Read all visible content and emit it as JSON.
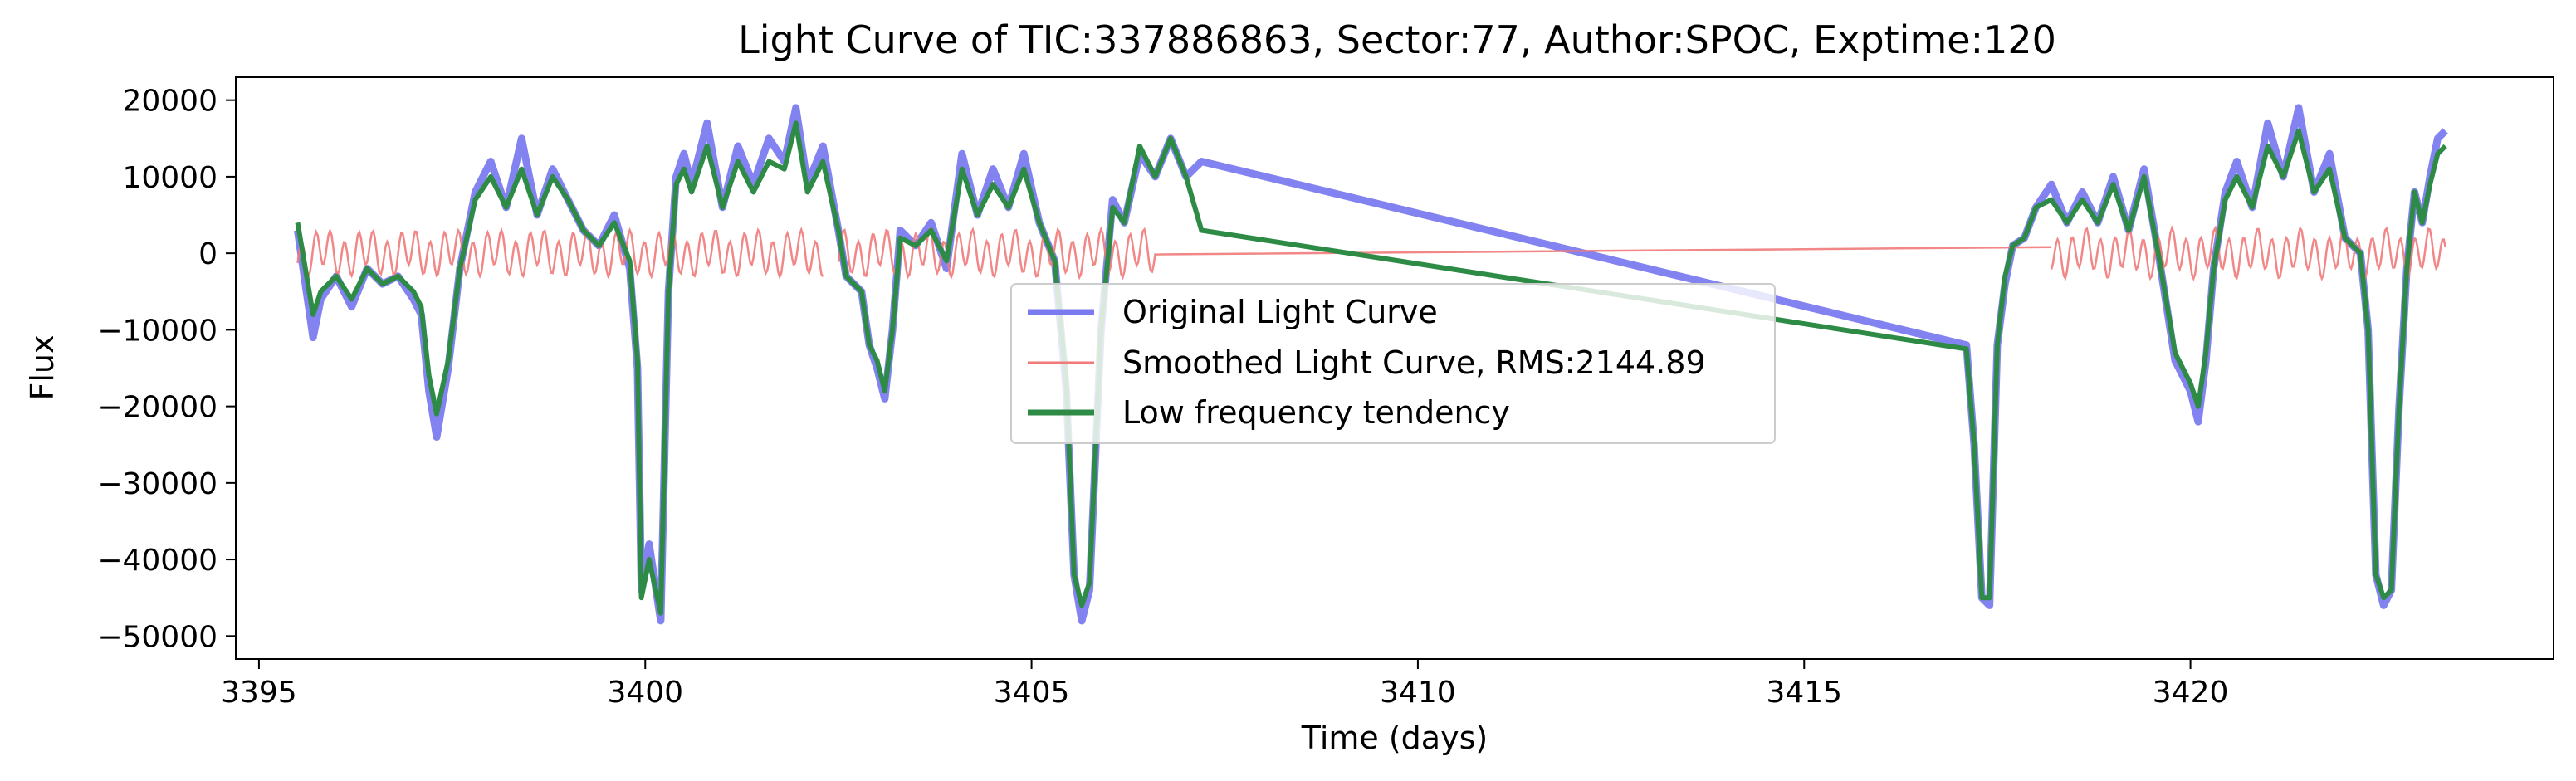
{
  "chart_data": {
    "type": "line",
    "title": "Light Curve of TIC:337886863, Sector:77, Author:SPOC, Exptime:120",
    "xlabel": "Time (days)",
    "ylabel": "Flux",
    "xlim": [
      3394.7,
      3424.7
    ],
    "ylim": [
      -53000,
      23000
    ],
    "xticks": [
      3395,
      3400,
      3405,
      3410,
      3415,
      3420
    ],
    "xtick_labels": [
      "3395",
      "3400",
      "3405",
      "3410",
      "3415",
      "3420"
    ],
    "yticks": [
      20000,
      10000,
      0,
      -10000,
      -20000,
      -30000,
      -40000,
      -50000
    ],
    "ytick_labels": [
      "20000",
      "10000",
      "0",
      "−10000",
      "−20000",
      "−30000",
      "−40000",
      "−50000"
    ],
    "grid": false,
    "legend_position": "center",
    "series": [
      {
        "name": "Original Light Curve",
        "color": "#7b7bf0",
        "x": [
          3395.5,
          3395.7,
          3395.8,
          3396.0,
          3396.2,
          3396.4,
          3396.6,
          3396.8,
          3397.0,
          3397.1,
          3397.2,
          3397.3,
          3397.45,
          3397.6,
          3397.8,
          3398.0,
          3398.2,
          3398.4,
          3398.6,
          3398.8,
          3399.0,
          3399.2,
          3399.4,
          3399.6,
          3399.8,
          3399.9,
          3399.95,
          3400.05,
          3400.2,
          3400.3,
          3400.4,
          3400.5,
          3400.6,
          3400.8,
          3401.0,
          3401.2,
          3401.4,
          3401.6,
          3401.8,
          3401.95,
          3402.1,
          3402.3,
          3402.5,
          3402.6,
          3402.8,
          3402.9,
          3403.0,
          3403.1,
          3403.2,
          3403.3,
          3403.5,
          3403.7,
          3403.9,
          3404.1,
          3404.3,
          3404.5,
          3404.7,
          3404.9,
          3405.1,
          3405.3,
          3405.45,
          3405.55,
          3405.65,
          3405.75,
          3405.9,
          3406.05,
          3406.2,
          3406.4,
          3406.6,
          3406.8,
          3407.0,
          3407.2,
          3417.1,
          3417.2,
          3417.3,
          3417.4,
          3417.5,
          3417.6,
          3417.7,
          3417.85,
          3418.0,
          3418.2,
          3418.4,
          3418.6,
          3418.8,
          3419.0,
          3419.2,
          3419.4,
          3419.6,
          3419.8,
          3420.0,
          3420.1,
          3420.2,
          3420.3,
          3420.45,
          3420.6,
          3420.8,
          3421.0,
          3421.2,
          3421.4,
          3421.6,
          3421.8,
          3422.0,
          3422.2,
          3422.3,
          3422.4,
          3422.5,
          3422.6,
          3422.7,
          3422.8,
          3422.9,
          3423.0,
          3423.1,
          3423.2,
          3423.3
        ],
        "y": [
          3000,
          -11000,
          -6000,
          -3000,
          -7000,
          -2000,
          -4000,
          -3000,
          -6000,
          -8000,
          -18000,
          -24000,
          -15000,
          -2000,
          8000,
          12000,
          6000,
          15000,
          5000,
          11000,
          7000,
          3000,
          1000,
          5000,
          -2000,
          -15000,
          -44000,
          -38000,
          -48000,
          -5000,
          10000,
          13000,
          9000,
          17000,
          6000,
          14000,
          9000,
          15000,
          12000,
          19000,
          9000,
          14000,
          3000,
          -3000,
          -5000,
          -12000,
          -15000,
          -19000,
          -10000,
          3000,
          1000,
          4000,
          -2000,
          13000,
          5000,
          11000,
          6000,
          13000,
          4000,
          -1000,
          -18000,
          -42000,
          -48000,
          -44000,
          -10000,
          7000,
          4000,
          13000,
          10000,
          15000,
          10000,
          12000,
          -12000,
          -25000,
          -45000,
          -46000,
          -12000,
          -4000,
          1000,
          2000,
          6000,
          9000,
          4000,
          8000,
          4000,
          10000,
          3000,
          11000,
          -1000,
          -14000,
          -18000,
          -22000,
          -14000,
          -2000,
          8000,
          12000,
          6000,
          17000,
          10000,
          19000,
          8000,
          13000,
          2000,
          0,
          -10000,
          -42000,
          -46000,
          -44000,
          -20000,
          -2000,
          8000,
          4000,
          10000,
          15000,
          16000
        ]
      },
      {
        "name": "Smoothed Light Curve, RMS:2144.89",
        "color": "#f07a7a"
      },
      {
        "name": "Low frequency tendency",
        "color": "#2e8b46",
        "x": [
          3395.5,
          3395.7,
          3395.8,
          3396.0,
          3396.2,
          3396.4,
          3396.6,
          3396.8,
          3397.0,
          3397.1,
          3397.2,
          3397.3,
          3397.45,
          3397.6,
          3397.8,
          3398.0,
          3398.2,
          3398.4,
          3398.6,
          3398.8,
          3399.0,
          3399.2,
          3399.4,
          3399.6,
          3399.8,
          3399.9,
          3399.95,
          3400.05,
          3400.2,
          3400.3,
          3400.4,
          3400.5,
          3400.6,
          3400.8,
          3401.0,
          3401.2,
          3401.4,
          3401.6,
          3401.8,
          3401.95,
          3402.1,
          3402.3,
          3402.5,
          3402.6,
          3402.8,
          3402.9,
          3403.0,
          3403.1,
          3403.2,
          3403.3,
          3403.5,
          3403.7,
          3403.9,
          3404.1,
          3404.3,
          3404.5,
          3404.7,
          3404.9,
          3405.1,
          3405.3,
          3405.45,
          3405.55,
          3405.65,
          3405.75,
          3405.9,
          3406.05,
          3406.2,
          3406.4,
          3406.6,
          3406.8,
          3407.0,
          3407.2,
          3417.1,
          3417.2,
          3417.3,
          3417.4,
          3417.5,
          3417.6,
          3417.7,
          3417.85,
          3418.0,
          3418.2,
          3418.4,
          3418.6,
          3418.8,
          3419.0,
          3419.2,
          3419.4,
          3419.6,
          3419.8,
          3420.0,
          3420.1,
          3420.2,
          3420.3,
          3420.45,
          3420.6,
          3420.8,
          3421.0,
          3421.2,
          3421.4,
          3421.6,
          3421.8,
          3422.0,
          3422.2,
          3422.3,
          3422.4,
          3422.5,
          3422.6,
          3422.7,
          3422.8,
          3422.9,
          3423.0,
          3423.1,
          3423.2,
          3423.3
        ],
        "y": [
          4000,
          -8000,
          -5000,
          -3000,
          -6000,
          -2000,
          -4000,
          -3000,
          -5000,
          -7000,
          -16000,
          -21000,
          -14000,
          -2000,
          7000,
          10000,
          6000,
          11000,
          5000,
          10000,
          7000,
          3000,
          1000,
          4000,
          -1000,
          -14000,
          -45000,
          -40000,
          -47000,
          -5000,
          9000,
          11000,
          8000,
          14000,
          6000,
          12000,
          8000,
          12000,
          11000,
          17000,
          8000,
          12000,
          3000,
          -3000,
          -5000,
          -12000,
          -14000,
          -18000,
          -10000,
          2000,
          1000,
          3000,
          -1000,
          11000,
          5000,
          9000,
          6000,
          11000,
          4000,
          -1000,
          -17000,
          -42000,
          -46000,
          -43000,
          -10000,
          6000,
          4000,
          14000,
          10000,
          15000,
          10000,
          3000,
          -12500,
          -25000,
          -45000,
          -45000,
          -12000,
          -3000,
          1000,
          2000,
          6000,
          7000,
          4000,
          7000,
          4000,
          9000,
          3000,
          10000,
          -1000,
          -13000,
          -17000,
          -20000,
          -13000,
          -2000,
          7000,
          10000,
          6000,
          14000,
          10000,
          16000,
          8000,
          11000,
          2000,
          0,
          -10000,
          -42000,
          -45000,
          -44000,
          -20000,
          -2000,
          8000,
          4000,
          9000,
          13000,
          14000
        ]
      }
    ]
  }
}
